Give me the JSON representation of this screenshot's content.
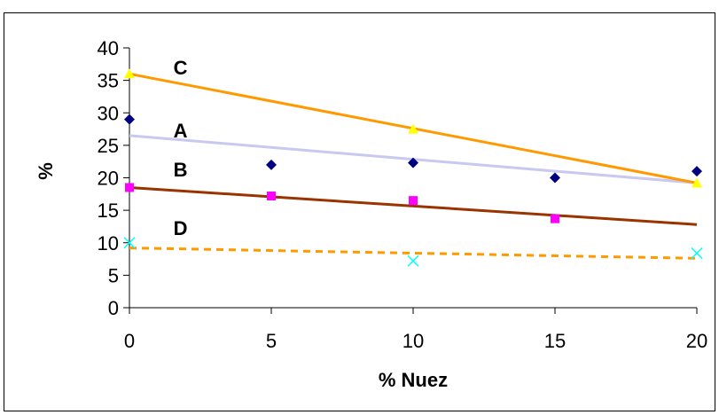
{
  "chart_data": {
    "type": "scatter",
    "xlabel": "% Nuez",
    "ylabel": "%",
    "xlim": [
      0,
      20
    ],
    "ylim": [
      0,
      40
    ],
    "x_ticks": [
      "0",
      "5",
      "10",
      "15",
      "20"
    ],
    "y_ticks": [
      "0",
      "5",
      "10",
      "15",
      "20",
      "25",
      "30",
      "35",
      "40"
    ],
    "grid": false,
    "legend": "none",
    "series": [
      {
        "name": "A",
        "marker": "diamond",
        "marker_color": "#000080",
        "points": [
          [
            0,
            29
          ],
          [
            5,
            22
          ],
          [
            10,
            22.3
          ],
          [
            15,
            20
          ],
          [
            20,
            21
          ]
        ],
        "trendline": {
          "from": [
            0,
            26.5
          ],
          "to": [
            20,
            19.2
          ],
          "color": "#c8c8f0",
          "style": "solid"
        }
      },
      {
        "name": "B",
        "marker": "square",
        "marker_color": "#ff00ff",
        "points": [
          [
            0,
            18.5
          ],
          [
            5,
            17.2
          ],
          [
            10,
            16.5
          ],
          [
            15,
            13.7
          ]
        ],
        "trendline": {
          "from": [
            0,
            18.5
          ],
          "to": [
            20,
            12.8
          ],
          "color": "#993300",
          "style": "solid"
        }
      },
      {
        "name": "C",
        "marker": "triangle",
        "marker_color": "#ffff00",
        "points": [
          [
            0,
            36
          ],
          [
            10,
            27.5
          ],
          [
            20,
            19.2
          ]
        ],
        "trendline": {
          "from": [
            0,
            36
          ],
          "to": [
            20,
            19.2
          ],
          "color": "#ff9900",
          "style": "solid"
        }
      },
      {
        "name": "D",
        "marker": "x",
        "marker_color": "#00ffff",
        "points": [
          [
            0,
            10
          ],
          [
            10,
            7.2
          ],
          [
            20,
            8.4
          ]
        ],
        "trendline": {
          "from": [
            0,
            9.2
          ],
          "to": [
            20,
            7.6
          ],
          "color": "#ff9900",
          "style": "dashed"
        }
      }
    ],
    "series_labels": [
      {
        "text": "C",
        "x": 1.8,
        "y": 37
      },
      {
        "text": "A",
        "x": 1.8,
        "y": 27.3
      },
      {
        "text": "B",
        "x": 1.8,
        "y": 21.3
      },
      {
        "text": "D",
        "x": 1.8,
        "y": 12.3
      }
    ]
  }
}
